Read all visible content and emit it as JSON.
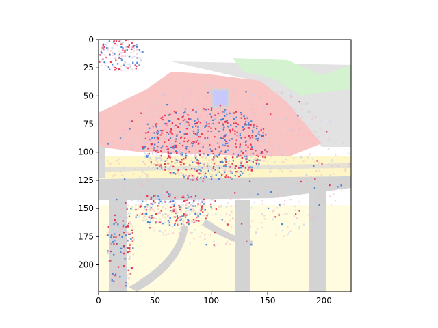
{
  "image": {
    "description_icon": "attribution-heatmap-overlay-image",
    "extent": {
      "x": [
        0,
        224
      ],
      "y": [
        0,
        224
      ]
    },
    "y_axis_inverted": true
  },
  "axes": {
    "x_ticks": [
      0,
      50,
      100,
      150,
      200
    ],
    "y_ticks": [
      0,
      25,
      50,
      75,
      100,
      125,
      150,
      175,
      200
    ]
  },
  "colors": {
    "frame": "#000000",
    "table": "#d3d3d3",
    "wall": "#f9c4c4",
    "sand": "#fffac8",
    "grass": "#cfeecf",
    "window": "#c8c8ff",
    "attribution_red": "#e8294a",
    "attribution_blue": "#3a7bd5"
  }
}
